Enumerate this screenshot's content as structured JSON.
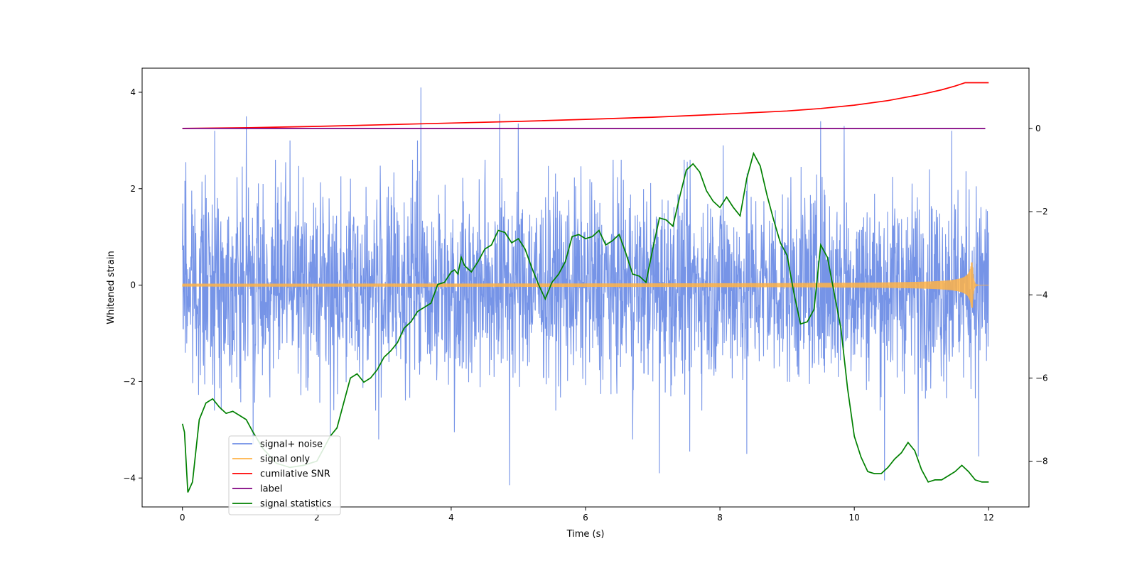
{
  "chart_data": {
    "type": "line",
    "title": "",
    "xlabel": "Time (s)",
    "ylabel": "Whitened strain",
    "ylabel_right": "",
    "xlim": [
      -0.6,
      12.6
    ],
    "ylim": [
      -4.6,
      4.5
    ],
    "ylim_right": [
      -9.1,
      1.45
    ],
    "x_ticks": [
      0,
      2,
      4,
      6,
      8,
      10,
      12
    ],
    "y_ticks": [
      -4,
      -2,
      0,
      2,
      4
    ],
    "y_ticks_right": [
      -8,
      -6,
      -4,
      -2,
      0
    ],
    "grid": false,
    "legend_position": "lower-left",
    "series": [
      {
        "name": "signal+ noise",
        "axis": "left",
        "color": "#6f8ee6",
        "kind": "noise",
        "x_range": [
          0,
          12
        ],
        "typical_amplitude": [
          -1.6,
          1.6
        ],
        "peaks": [
          {
            "x": 0.05,
            "y": 2.55
          },
          {
            "x": 0.48,
            "y": 3.2
          },
          {
            "x": 0.95,
            "y": 3.5
          },
          {
            "x": 1.05,
            "y": -3.3
          },
          {
            "x": 1.6,
            "y": 3.0
          },
          {
            "x": 2.2,
            "y": -3.1
          },
          {
            "x": 2.92,
            "y": -3.2
          },
          {
            "x": 3.55,
            "y": 4.1
          },
          {
            "x": 3.5,
            "y": 3.0
          },
          {
            "x": 4.05,
            "y": -3.05
          },
          {
            "x": 4.72,
            "y": 3.55
          },
          {
            "x": 4.87,
            "y": -4.15
          },
          {
            "x": 5.0,
            "y": 3.35
          },
          {
            "x": 6.7,
            "y": -3.2
          },
          {
            "x": 7.1,
            "y": -3.9
          },
          {
            "x": 7.55,
            "y": -3.45
          },
          {
            "x": 8.05,
            "y": 2.9
          },
          {
            "x": 8.4,
            "y": -3.5
          },
          {
            "x": 9.5,
            "y": 3.4
          },
          {
            "x": 9.85,
            "y": 3.3
          },
          {
            "x": 10.45,
            "y": -4.05
          },
          {
            "x": 10.95,
            "y": -3.55
          },
          {
            "x": 11.45,
            "y": 3.2
          },
          {
            "x": 11.85,
            "y": 2.85
          },
          {
            "x": 11.85,
            "y": -3.55
          }
        ]
      },
      {
        "name": "signal only",
        "axis": "left",
        "color": "#ffb347",
        "kind": "chirp",
        "x_range": [
          0,
          12
        ],
        "amplitude_start": 0.02,
        "amplitude_peak": 0.47,
        "peak_time": 11.76
      },
      {
        "name": "cumilative SNR",
        "axis": "right",
        "color": "#ff0000",
        "x": [
          0,
          1,
          2,
          3,
          4,
          5,
          6,
          7,
          8,
          9,
          9.5,
          10,
          10.5,
          11,
          11.3,
          11.5,
          11.65,
          11.76,
          12
        ],
        "values": [
          0,
          0.02,
          0.05,
          0.09,
          0.13,
          0.17,
          0.22,
          0.27,
          0.34,
          0.42,
          0.48,
          0.56,
          0.67,
          0.82,
          0.93,
          1.02,
          1.1,
          1.1,
          1.1
        ]
      },
      {
        "name": "label",
        "axis": "right",
        "color": "#800080",
        "x": [
          0,
          11.95
        ],
        "values": [
          0,
          0
        ]
      },
      {
        "name": "signal statistics",
        "axis": "right",
        "color": "#008000",
        "x": [
          0,
          0.03,
          0.08,
          0.15,
          0.25,
          0.35,
          0.45,
          0.55,
          0.65,
          0.75,
          0.85,
          0.95,
          1.05,
          1.2,
          1.4,
          1.6,
          1.8,
          2.0,
          2.1,
          2.2,
          2.3,
          2.4,
          2.5,
          2.6,
          2.7,
          2.8,
          2.9,
          3.0,
          3.1,
          3.2,
          3.3,
          3.4,
          3.5,
          3.6,
          3.7,
          3.8,
          3.9,
          4.0,
          4.05,
          4.1,
          4.15,
          4.2,
          4.3,
          4.4,
          4.5,
          4.6,
          4.7,
          4.8,
          4.9,
          5.0,
          5.1,
          5.2,
          5.3,
          5.4,
          5.5,
          5.6,
          5.7,
          5.8,
          5.9,
          6.0,
          6.1,
          6.2,
          6.3,
          6.4,
          6.5,
          6.6,
          6.7,
          6.8,
          6.9,
          7.0,
          7.1,
          7.2,
          7.3,
          7.4,
          7.5,
          7.6,
          7.7,
          7.8,
          7.9,
          8.0,
          8.1,
          8.2,
          8.3,
          8.4,
          8.5,
          8.6,
          8.7,
          8.8,
          8.9,
          9.0,
          9.1,
          9.2,
          9.3,
          9.4,
          9.5,
          9.6,
          9.7,
          9.8,
          9.9,
          10.0,
          10.1,
          10.2,
          10.3,
          10.4,
          10.5,
          10.6,
          10.7,
          10.8,
          10.9,
          11.0,
          11.1,
          11.2,
          11.3,
          11.4,
          11.5,
          11.6,
          11.7,
          11.8,
          11.9,
          12.0
        ],
        "values": [
          -7.1,
          -7.3,
          -8.75,
          -8.5,
          -7.0,
          -6.6,
          -6.5,
          -6.7,
          -6.85,
          -6.8,
          -6.9,
          -7.0,
          -7.3,
          -7.7,
          -8.05,
          -8.15,
          -8.1,
          -8.0,
          -7.7,
          -7.4,
          -7.2,
          -6.6,
          -6.0,
          -5.9,
          -6.1,
          -6.0,
          -5.8,
          -5.5,
          -5.35,
          -5.15,
          -4.8,
          -4.65,
          -4.4,
          -4.3,
          -4.2,
          -3.75,
          -3.7,
          -3.45,
          -3.4,
          -3.5,
          -3.1,
          -3.3,
          -3.45,
          -3.2,
          -2.9,
          -2.8,
          -2.45,
          -2.5,
          -2.75,
          -2.65,
          -2.9,
          -3.35,
          -3.75,
          -4.1,
          -3.7,
          -3.5,
          -3.2,
          -2.6,
          -2.55,
          -2.65,
          -2.6,
          -2.45,
          -2.8,
          -2.7,
          -2.55,
          -3.0,
          -3.5,
          -3.55,
          -3.7,
          -2.9,
          -2.15,
          -2.2,
          -2.35,
          -1.65,
          -1.0,
          -0.85,
          -1.05,
          -1.5,
          -1.75,
          -1.9,
          -1.65,
          -1.9,
          -2.1,
          -1.2,
          -0.6,
          -0.9,
          -1.6,
          -2.2,
          -2.75,
          -3.05,
          -3.95,
          -4.7,
          -4.65,
          -4.35,
          -2.8,
          -3.1,
          -3.95,
          -4.8,
          -6.25,
          -7.4,
          -7.9,
          -8.25,
          -8.3,
          -8.3,
          -8.15,
          -7.95,
          -7.8,
          -7.55,
          -7.75,
          -8.2,
          -8.5,
          -8.45,
          -8.45,
          -8.35,
          -8.25,
          -8.1,
          -8.25,
          -8.45,
          -8.5,
          -8.5
        ]
      }
    ]
  }
}
